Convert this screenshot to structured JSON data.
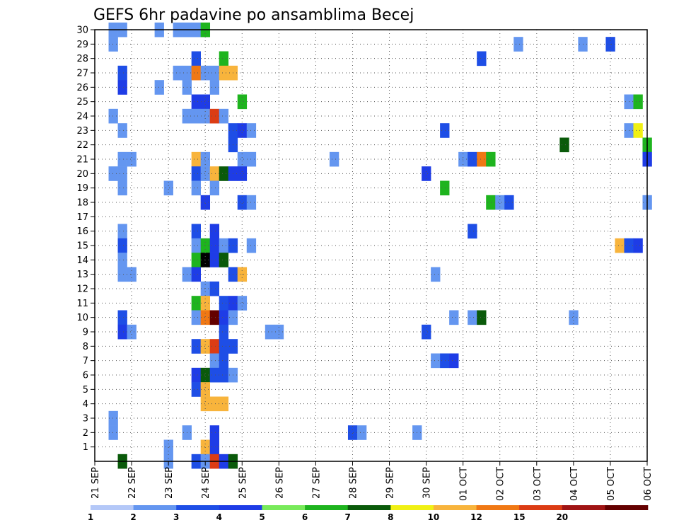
{
  "chart_data": {
    "type": "heatmap",
    "title": "GEFS 6hr padavine po ansamblima Becej",
    "x_tick_labels": [
      "21 SEP",
      "22 SEP",
      "23 SEP",
      "24 SEP",
      "25 SEP",
      "26 SEP",
      "27 SEP",
      "28 SEP",
      "29 SEP",
      "30 SEP",
      "01 OCT",
      "02 OCT",
      "03 OCT",
      "04 OCT",
      "05 OCT",
      "06 OCT"
    ],
    "x_steps_per_day": 4,
    "x_range_steps": [
      0,
      60
    ],
    "y_tick_labels": [
      "1",
      "2",
      "3",
      "4",
      "5",
      "6",
      "7",
      "8",
      "9",
      "10",
      "11",
      "12",
      "13",
      "14",
      "15",
      "16",
      "17",
      "18",
      "19",
      "20",
      "21",
      "22",
      "23",
      "24",
      "25",
      "26",
      "27",
      "28",
      "29",
      "30"
    ],
    "y_range": [
      0,
      30
    ],
    "grid": true,
    "colorbar": {
      "levels": [
        1,
        2,
        3,
        4,
        5,
        6,
        7,
        8,
        10,
        12,
        15,
        20
      ],
      "tick_labels": [
        "1",
        "2",
        "3",
        "4",
        "5",
        "6",
        "7",
        "8",
        "10",
        "12",
        "15",
        "20"
      ],
      "colors": [
        "#b4c8f8",
        "#6496f0",
        "#1e4ee6",
        "#1e3ce6",
        "#78ea5a",
        "#1eb41e",
        "#0a5a0a",
        "#f0f014",
        "#f8b43c",
        "#f07814",
        "#dc3c14",
        "#a01414",
        "#640000"
      ]
    },
    "cells": [
      [
        2,
        30,
        1
      ],
      [
        3,
        30,
        1
      ],
      [
        7,
        30,
        1
      ],
      [
        9,
        30,
        1
      ],
      [
        10,
        30,
        1
      ],
      [
        11,
        30,
        1
      ],
      [
        12,
        30,
        5
      ],
      [
        2,
        29,
        1
      ],
      [
        46,
        29,
        1
      ],
      [
        53,
        29,
        1
      ],
      [
        56,
        29,
        2
      ],
      [
        11,
        28,
        2
      ],
      [
        14,
        28,
        5
      ],
      [
        42,
        28,
        2
      ],
      [
        3,
        27,
        2
      ],
      [
        9,
        27,
        1
      ],
      [
        10,
        27,
        1
      ],
      [
        11,
        27,
        9
      ],
      [
        12,
        27,
        1
      ],
      [
        13,
        27,
        1
      ],
      [
        14,
        27,
        8
      ],
      [
        15,
        27,
        8
      ],
      [
        3,
        26,
        3
      ],
      [
        7,
        26,
        1
      ],
      [
        10,
        26,
        1
      ],
      [
        13,
        26,
        1
      ],
      [
        11,
        25,
        3
      ],
      [
        12,
        25,
        3
      ],
      [
        16,
        25,
        5
      ],
      [
        58,
        25,
        1
      ],
      [
        59,
        25,
        5
      ],
      [
        2,
        24,
        1
      ],
      [
        10,
        24,
        1
      ],
      [
        11,
        24,
        1
      ],
      [
        12,
        24,
        1
      ],
      [
        13,
        24,
        10
      ],
      [
        14,
        24,
        1
      ],
      [
        3,
        23,
        1
      ],
      [
        15,
        23,
        2
      ],
      [
        16,
        23,
        3
      ],
      [
        17,
        23,
        1
      ],
      [
        38,
        23,
        2
      ],
      [
        58,
        23,
        1
      ],
      [
        59,
        23,
        7
      ],
      [
        15,
        22,
        2
      ],
      [
        51,
        22,
        6
      ],
      [
        60,
        22,
        5
      ],
      [
        3,
        21,
        1
      ],
      [
        4,
        21,
        1
      ],
      [
        11,
        21,
        8
      ],
      [
        12,
        21,
        1
      ],
      [
        16,
        21,
        1
      ],
      [
        17,
        21,
        1
      ],
      [
        26,
        21,
        1
      ],
      [
        40,
        21,
        1
      ],
      [
        41,
        21,
        2
      ],
      [
        42,
        21,
        9
      ],
      [
        43,
        21,
        5
      ],
      [
        60,
        21,
        3
      ],
      [
        2,
        20,
        1
      ],
      [
        3,
        20,
        1
      ],
      [
        11,
        20,
        2
      ],
      [
        12,
        20,
        1
      ],
      [
        13,
        20,
        8
      ],
      [
        14,
        20,
        6
      ],
      [
        15,
        20,
        3
      ],
      [
        16,
        20,
        3
      ],
      [
        36,
        20,
        3
      ],
      [
        3,
        19,
        1
      ],
      [
        8,
        19,
        1
      ],
      [
        11,
        19,
        1
      ],
      [
        13,
        19,
        1
      ],
      [
        38,
        19,
        5
      ],
      [
        12,
        18,
        3
      ],
      [
        16,
        18,
        2
      ],
      [
        17,
        18,
        1
      ],
      [
        43,
        18,
        5
      ],
      [
        44,
        18,
        1
      ],
      [
        45,
        18,
        2
      ],
      [
        60,
        18,
        1
      ],
      [
        3,
        16,
        1
      ],
      [
        11,
        16,
        2
      ],
      [
        13,
        16,
        3
      ],
      [
        41,
        16,
        2
      ],
      [
        3,
        15,
        2
      ],
      [
        11,
        15,
        1
      ],
      [
        12,
        15,
        5
      ],
      [
        13,
        15,
        3
      ],
      [
        14,
        15,
        1
      ],
      [
        15,
        15,
        2
      ],
      [
        17,
        15,
        1
      ],
      [
        57,
        15,
        8
      ],
      [
        58,
        15,
        2
      ],
      [
        59,
        15,
        3
      ],
      [
        3,
        14,
        1
      ],
      [
        11,
        14,
        5
      ],
      [
        12,
        14,
        13
      ],
      [
        13,
        14,
        3
      ],
      [
        14,
        14,
        6
      ],
      [
        3,
        13,
        1
      ],
      [
        4,
        13,
        1
      ],
      [
        10,
        13,
        1
      ],
      [
        11,
        13,
        3
      ],
      [
        15,
        13,
        2
      ],
      [
        16,
        13,
        8
      ],
      [
        37,
        13,
        1
      ],
      [
        12,
        12,
        1
      ],
      [
        13,
        12,
        2
      ],
      [
        11,
        11,
        5
      ],
      [
        12,
        11,
        8
      ],
      [
        14,
        11,
        2
      ],
      [
        15,
        11,
        3
      ],
      [
        16,
        11,
        1
      ],
      [
        3,
        10,
        2
      ],
      [
        11,
        10,
        1
      ],
      [
        12,
        10,
        9
      ],
      [
        13,
        10,
        12
      ],
      [
        14,
        10,
        3
      ],
      [
        15,
        10,
        1
      ],
      [
        39,
        10,
        1
      ],
      [
        41,
        10,
        1
      ],
      [
        42,
        10,
        6
      ],
      [
        52,
        10,
        1
      ],
      [
        3,
        9,
        3
      ],
      [
        4,
        9,
        1
      ],
      [
        14,
        9,
        2
      ],
      [
        19,
        9,
        1
      ],
      [
        20,
        9,
        1
      ],
      [
        36,
        9,
        2
      ],
      [
        11,
        8,
        2
      ],
      [
        12,
        8,
        8
      ],
      [
        13,
        8,
        10
      ],
      [
        14,
        8,
        2
      ],
      [
        15,
        8,
        2
      ],
      [
        13,
        7,
        1
      ],
      [
        14,
        7,
        2
      ],
      [
        37,
        7,
        1
      ],
      [
        38,
        7,
        2
      ],
      [
        39,
        7,
        3
      ],
      [
        11,
        6,
        3
      ],
      [
        12,
        6,
        6
      ],
      [
        13,
        6,
        2
      ],
      [
        14,
        6,
        2
      ],
      [
        15,
        6,
        1
      ],
      [
        11,
        5,
        2
      ],
      [
        12,
        5,
        8
      ],
      [
        12,
        4,
        8
      ],
      [
        13,
        4,
        8
      ],
      [
        14,
        4,
        8
      ],
      [
        2,
        3,
        1
      ],
      [
        2,
        2,
        1
      ],
      [
        10,
        2,
        1
      ],
      [
        13,
        2,
        3
      ],
      [
        28,
        2,
        2
      ],
      [
        29,
        2,
        1
      ],
      [
        35,
        2,
        1
      ],
      [
        8,
        1,
        1
      ],
      [
        12,
        1,
        8
      ],
      [
        13,
        1,
        3
      ],
      [
        3,
        0,
        6
      ],
      [
        8,
        0,
        1
      ],
      [
        11,
        0,
        2
      ],
      [
        12,
        0,
        1
      ],
      [
        13,
        0,
        10
      ],
      [
        14,
        0,
        3
      ],
      [
        15,
        0,
        6
      ]
    ]
  }
}
